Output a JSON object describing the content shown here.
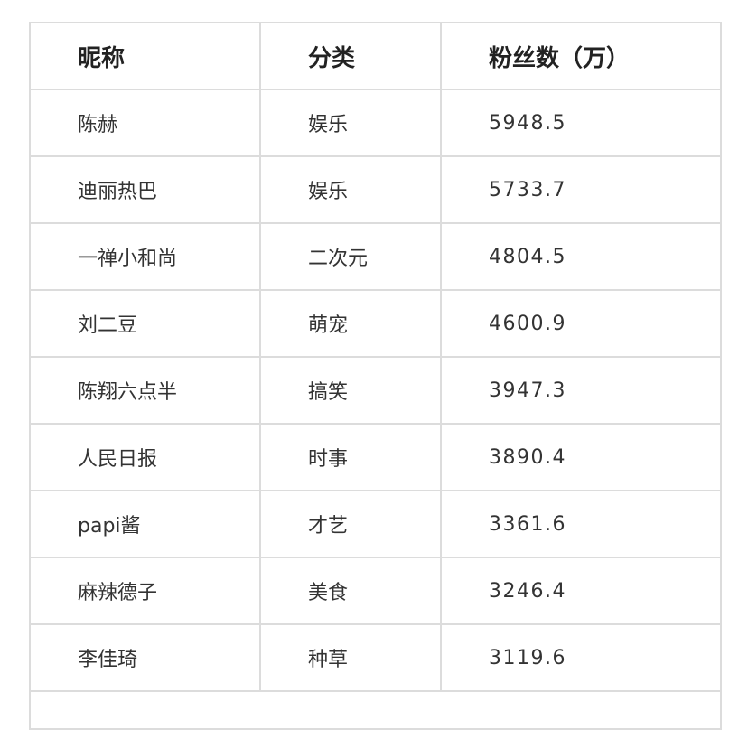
{
  "table": {
    "headers": [
      "昵称",
      "分类",
      "粉丝数（万）"
    ],
    "rows": [
      [
        "陈赫",
        "娱乐",
        "5948.5"
      ],
      [
        "迪丽热巴",
        "娱乐",
        "5733.7"
      ],
      [
        "一禅小和尚",
        "二次元",
        "4804.5"
      ],
      [
        "刘二豆",
        "萌宠",
        "4600.9"
      ],
      [
        "陈翔六点半",
        "搞笑",
        "3947.3"
      ],
      [
        "人民日报",
        "时事",
        "3890.4"
      ],
      [
        "papi酱",
        "才艺",
        "3361.6"
      ],
      [
        "麻辣德子",
        "美食",
        "3246.4"
      ],
      [
        "李佳琦",
        "种草",
        "3119.6"
      ]
    ]
  }
}
